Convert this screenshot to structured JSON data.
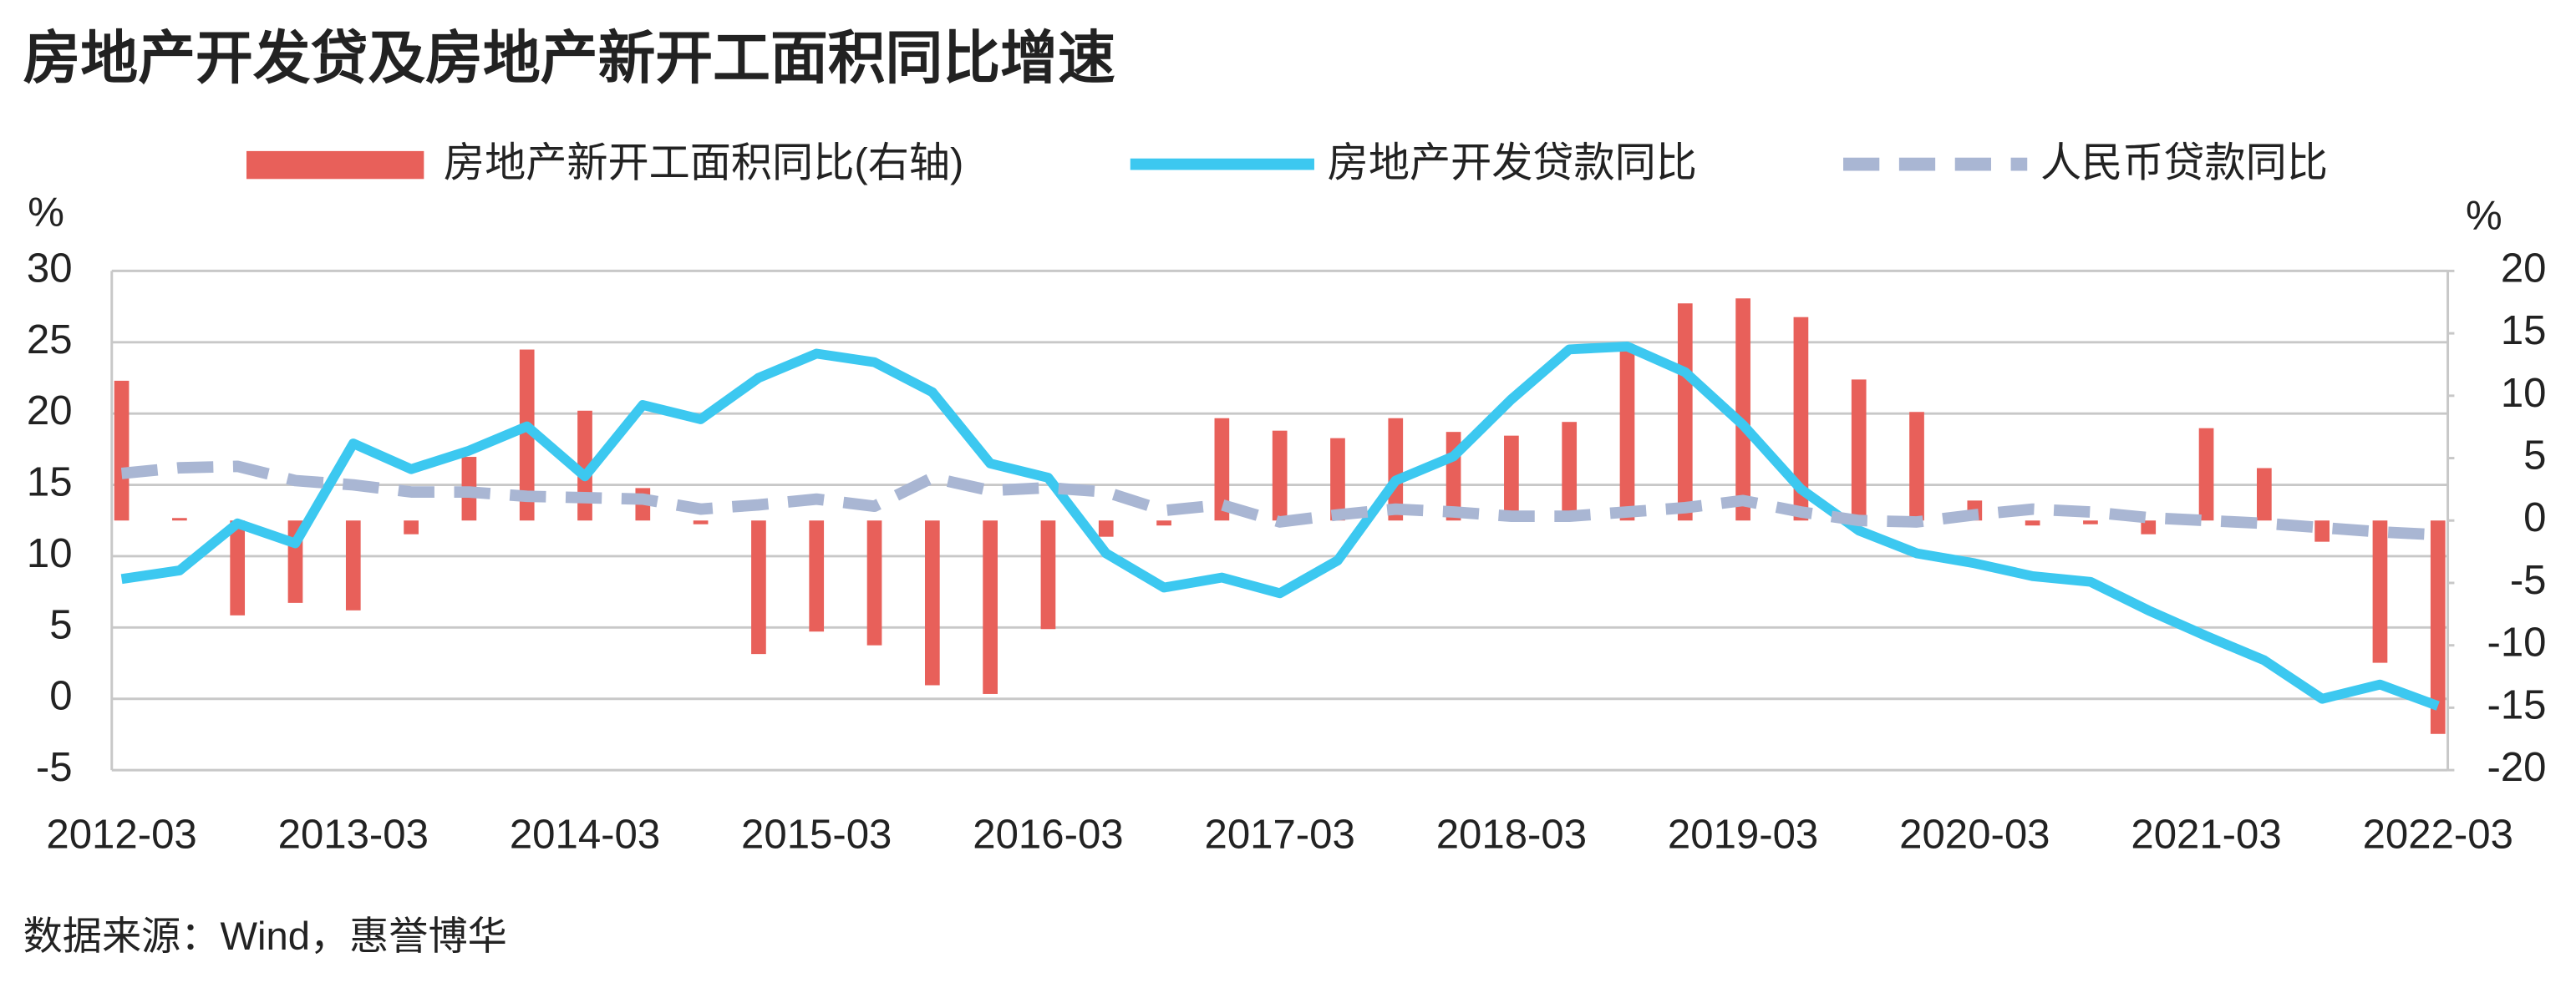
{
  "chart_data": {
    "type": "bar-line",
    "title": "房地产开发贷及房地产新开工面积同比增速",
    "ylabel": "%",
    "y2label": "%",
    "source": "数据来源：Wind，惠誉博华",
    "categories": [
      "2012-03",
      null,
      null,
      null,
      "2013-03",
      null,
      null,
      null,
      "2014-03",
      null,
      null,
      null,
      "2015-03",
      null,
      null,
      null,
      "2016-03",
      null,
      null,
      null,
      "2017-03",
      null,
      null,
      null,
      "2018-03",
      null,
      null,
      null,
      "2019-03",
      null,
      null,
      null,
      "2020-03",
      null,
      null,
      null,
      "2021-03",
      null,
      null,
      null,
      "2022-03"
    ],
    "ylim": [
      -5,
      30
    ],
    "yticks": [
      -5,
      0,
      5,
      10,
      15,
      20,
      25,
      30
    ],
    "y2lim": [
      -20,
      20
    ],
    "y2ticks": [
      -20,
      -15,
      -10,
      -5,
      0,
      5,
      10,
      15,
      20
    ],
    "grid": true,
    "legend": "top",
    "series": [
      {
        "name": "房地产新开工面积同比(右轴)",
        "type": "bar",
        "axis": "y2",
        "color": "#e8605a",
        "values": [
          11.2,
          0.2,
          -7.6,
          -6.6,
          -7.2,
          -1.1,
          5.1,
          13.7,
          8.8,
          2.6,
          -0.3,
          -10.7,
          -8.9,
          -10.0,
          -13.2,
          -13.9,
          -8.7,
          -1.3,
          -0.4,
          8.2,
          7.2,
          6.6,
          8.2,
          7.1,
          6.8,
          7.9,
          14.1,
          17.4,
          17.8,
          16.3,
          11.3,
          8.7,
          1.6,
          -0.4,
          -0.3,
          -1.1,
          7.4,
          4.2,
          -1.7,
          -11.4,
          -17.1
        ]
      },
      {
        "name": "房地产开发贷款同比",
        "type": "line",
        "color": "#3cc8f0",
        "values": [
          8.4,
          9.0,
          12.3,
          10.9,
          17.9,
          16.1,
          17.4,
          19.1,
          15.6,
          20.6,
          19.6,
          22.5,
          24.2,
          23.6,
          21.5,
          16.5,
          15.5,
          10.2,
          7.8,
          8.5,
          7.4,
          9.7,
          15.3,
          17.0,
          21.0,
          24.5,
          24.7,
          22.9,
          19.2,
          14.7,
          11.8,
          10.2,
          9.5,
          8.6,
          8.2,
          6.2,
          4.4,
          2.7,
          0.0,
          1.0,
          -0.5
        ]
      },
      {
        "name": "人民币贷款同比",
        "type": "line",
        "dashed": true,
        "color": "#a9b6d3",
        "values": [
          15.8,
          16.2,
          16.3,
          15.3,
          15.0,
          14.5,
          14.5,
          14.2,
          14.1,
          14.0,
          13.3,
          13.6,
          14.0,
          13.5,
          15.5,
          14.6,
          14.8,
          14.5,
          13.2,
          13.6,
          12.4,
          12.9,
          13.3,
          13.1,
          12.8,
          12.8,
          13.1,
          13.4,
          13.9,
          13.1,
          12.5,
          12.4,
          12.9,
          13.3,
          13.1,
          12.7,
          12.5,
          12.3,
          12.0,
          11.7,
          11.5
        ]
      }
    ]
  }
}
